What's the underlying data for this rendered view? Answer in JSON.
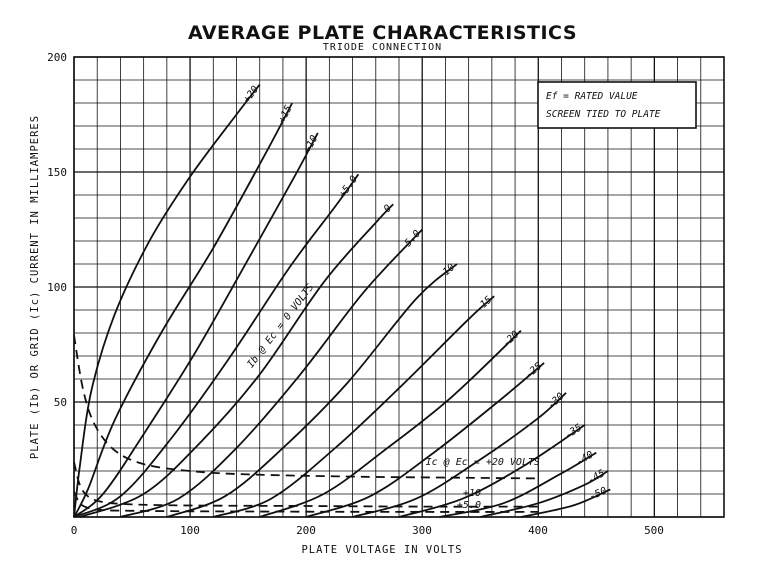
{
  "chart_data": {
    "type": "line",
    "title": "AVERAGE PLATE CHARACTERISTICS",
    "subtitle": "TRIODE CONNECTION",
    "xlabel": "PLATE VOLTAGE IN VOLTS",
    "ylabel": "PLATE (Ib) OR GRID (Ic) CURRENT IN MILLIAMPERES",
    "xlim": [
      0,
      560
    ],
    "ylim": [
      0,
      200
    ],
    "xticks": [
      "0",
      "100",
      "200",
      "300",
      "400",
      "500"
    ],
    "yticks": [
      "50",
      "100",
      "150",
      "200"
    ],
    "grid": true,
    "legend_box": {
      "line1": "Ef = RATED VALUE",
      "line2": "SCREEN TIED TO PLATE"
    },
    "plate_curves_family_label": "Ib @ Ec = 0 VOLTS",
    "plate_curves": [
      {
        "label": "+20",
        "x": [
          0,
          5,
          15,
          35,
          65,
          100,
          140,
          160
        ],
        "y": [
          0,
          22,
          55,
          88,
          120,
          148,
          175,
          188
        ]
      },
      {
        "label": "+15",
        "x": [
          0,
          12,
          35,
          75,
          120,
          165,
          188
        ],
        "y": [
          0,
          12,
          42,
          80,
          117,
          158,
          180
        ]
      },
      {
        "label": "+10",
        "x": [
          0,
          25,
          60,
          105,
          150,
          190,
          210
        ],
        "y": [
          0,
          10,
          36,
          72,
          112,
          148,
          167
        ]
      },
      {
        "label": "+5.0",
        "x": [
          0,
          40,
          85,
          135,
          185,
          225,
          245
        ],
        "y": [
          0,
          9,
          35,
          70,
          108,
          135,
          149
        ]
      },
      {
        "label": "0",
        "x": [
          5,
          60,
          110,
          160,
          215,
          260,
          275
        ],
        "y": [
          0,
          10,
          33,
          62,
          102,
          128,
          136
        ]
      },
      {
        "label": "-5.0",
        "x": [
          40,
          90,
          140,
          195,
          250,
          300
        ],
        "y": [
          0,
          8,
          30,
          62,
          98,
          125
        ]
      },
      {
        "label": "-10",
        "x": [
          80,
          130,
          180,
          235,
          295,
          330
        ],
        "y": [
          0,
          9,
          30,
          58,
          95,
          110
        ]
      },
      {
        "label": "-15",
        "x": [
          120,
          170,
          225,
          280,
          340,
          362
        ],
        "y": [
          0,
          8,
          30,
          56,
          86,
          96
        ]
      },
      {
        "label": "-20",
        "x": [
          160,
          215,
          270,
          325,
          385
        ],
        "y": [
          0,
          10,
          30,
          52,
          81
        ]
      },
      {
        "label": "-25",
        "x": [
          200,
          255,
          310,
          365,
          405
        ],
        "y": [
          0,
          9,
          28,
          50,
          67
        ]
      },
      {
        "label": "-30",
        "x": [
          240,
          295,
          350,
          400,
          424
        ],
        "y": [
          0,
          8,
          25,
          43,
          54
        ]
      },
      {
        "label": "-35",
        "x": [
          280,
          335,
          390,
          440
        ],
        "y": [
          0,
          8,
          23,
          40
        ]
      },
      {
        "label": "-40",
        "x": [
          315,
          370,
          420,
          450
        ],
        "y": [
          0,
          6,
          19,
          28
        ]
      },
      {
        "label": "-45",
        "x": [
          350,
          400,
          440,
          460
        ],
        "y": [
          0,
          6,
          14,
          20
        ]
      },
      {
        "label": "-50",
        "x": [
          385,
          430,
          462
        ],
        "y": [
          0,
          5,
          12
        ]
      }
    ],
    "grid_curves": [
      {
        "label": "Ic @ Ec = +20 VOLTS",
        "x": [
          0,
          8,
          18,
          35,
          60,
          100,
          150,
          250,
          350,
          400
        ],
        "y": [
          79,
          55,
          40,
          29,
          23,
          20,
          18.5,
          17.5,
          17,
          16.8
        ]
      },
      {
        "label": "+10",
        "x": [
          0,
          5,
          12,
          25,
          50,
          100,
          200,
          300,
          400
        ],
        "y": [
          24,
          14,
          9,
          6.5,
          5.5,
          5,
          4.8,
          4.5,
          4.5
        ]
      },
      {
        "label": "+5.0",
        "x": [
          0,
          5,
          12,
          25,
          50,
          100,
          200,
          300,
          400
        ],
        "y": [
          11,
          6,
          4,
          3,
          2.7,
          2.5,
          2.3,
          2.2,
          2.2
        ]
      }
    ]
  }
}
